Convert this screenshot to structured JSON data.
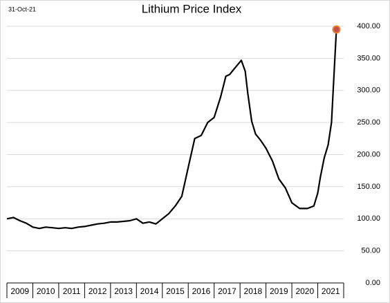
{
  "chart_data": {
    "type": "line",
    "title": "Lithium Price Index",
    "date_label": "31-Oct-21",
    "x": [
      2009.0,
      2009.25,
      2009.5,
      2009.75,
      2010.0,
      2010.25,
      2010.5,
      2010.75,
      2011.0,
      2011.25,
      2011.5,
      2011.75,
      2012.0,
      2012.25,
      2012.5,
      2012.75,
      2013.0,
      2013.25,
      2013.5,
      2013.75,
      2014.0,
      2014.25,
      2014.5,
      2014.75,
      2015.0,
      2015.25,
      2015.5,
      2015.75,
      2016.0,
      2016.25,
      2016.5,
      2016.75,
      2017.0,
      2017.25,
      2017.45,
      2017.6,
      2017.8,
      2018.05,
      2018.2,
      2018.3,
      2018.45,
      2018.6,
      2018.8,
      2019.0,
      2019.25,
      2019.5,
      2019.75,
      2020.0,
      2020.3,
      2020.6,
      2020.85,
      2021.0,
      2021.1,
      2021.25,
      2021.4,
      2021.53,
      2021.62,
      2021.72
    ],
    "series": [
      {
        "name": "Lithium Price Index",
        "color": "#000000",
        "values": [
          100,
          102,
          97,
          93,
          87,
          85,
          87,
          86,
          85,
          86,
          85,
          87,
          88,
          90,
          92,
          93,
          95,
          95,
          96,
          97,
          100,
          93,
          95,
          92,
          100,
          108,
          120,
          135,
          180,
          225,
          230,
          250,
          258,
          290,
          322,
          325,
          335,
          347,
          330,
          295,
          252,
          232,
          222,
          210,
          190,
          162,
          148,
          125,
          116,
          116,
          120,
          140,
          165,
          195,
          215,
          250,
          320,
          395
        ]
      }
    ],
    "marker_color": "#ed7d31",
    "year_labels": [
      "2009",
      "2010",
      "2011",
      "2012",
      "2013",
      "2014",
      "2015",
      "2016",
      "2017",
      "2018",
      "2019",
      "2020",
      "2021"
    ],
    "xlim": [
      2009,
      2022
    ],
    "xticks": [
      2009,
      2010,
      2011,
      2012,
      2013,
      2014,
      2015,
      2016,
      2017,
      2018,
      2019,
      2020,
      2021,
      2022
    ],
    "ylim": [
      0,
      400
    ],
    "yticks": [
      {
        "value": 0,
        "label": "0.00"
      },
      {
        "value": 50,
        "label": "50.00"
      },
      {
        "value": 100,
        "label": "100.00"
      },
      {
        "value": 150,
        "label": "150.00"
      },
      {
        "value": 200,
        "label": "200.00"
      },
      {
        "value": 250,
        "label": "250.00"
      },
      {
        "value": 300,
        "label": "300.00"
      },
      {
        "value": 350,
        "label": "350.00"
      },
      {
        "value": 400,
        "label": "400.00"
      }
    ],
    "grid": true
  }
}
